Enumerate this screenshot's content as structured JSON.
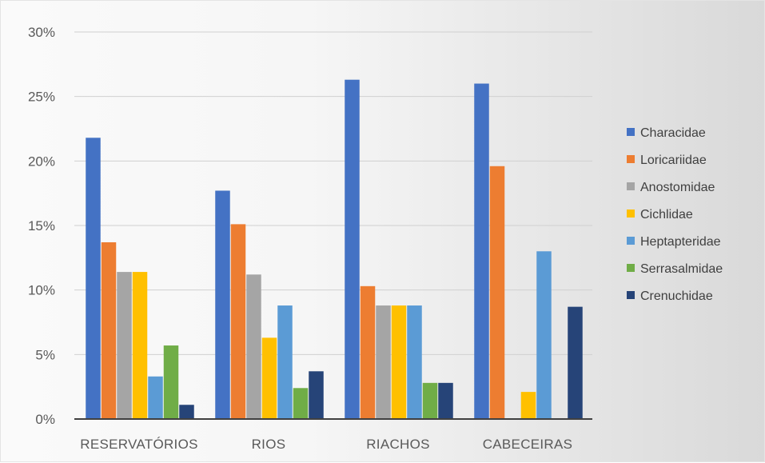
{
  "chart_data": {
    "type": "bar",
    "title": "",
    "xlabel": "",
    "ylabel": "",
    "categories": [
      "RESERVATÓRIOS",
      "RIOS",
      "RIACHOS",
      "CABECEIRAS"
    ],
    "y_ticks": [
      "0%",
      "5%",
      "10%",
      "15%",
      "20%",
      "25%",
      "30%"
    ],
    "ylim": [
      0,
      30
    ],
    "grid": true,
    "legend_position": "right",
    "series": [
      {
        "name": "Characidae",
        "color": "#4472C4",
        "values": [
          21.8,
          17.7,
          26.3,
          26.0
        ]
      },
      {
        "name": "Loricariidae",
        "color": "#ED7D31",
        "values": [
          13.7,
          15.1,
          10.3,
          19.6
        ]
      },
      {
        "name": "Anostomidae",
        "color": "#A5A5A5",
        "values": [
          11.4,
          11.2,
          8.8,
          0
        ]
      },
      {
        "name": "Cichlidae",
        "color": "#FFC000",
        "values": [
          11.4,
          6.3,
          8.8,
          2.1
        ]
      },
      {
        "name": "Heptapteridae",
        "color": "#5B9BD5",
        "values": [
          3.3,
          8.8,
          8.8,
          13.0
        ]
      },
      {
        "name": "Serrasalmidae",
        "color": "#70AD47",
        "values": [
          5.7,
          2.4,
          2.8,
          0
        ]
      },
      {
        "name": "Crenuchidae",
        "color": "#264478",
        "values": [
          1.1,
          3.7,
          2.8,
          8.7
        ]
      }
    ]
  }
}
